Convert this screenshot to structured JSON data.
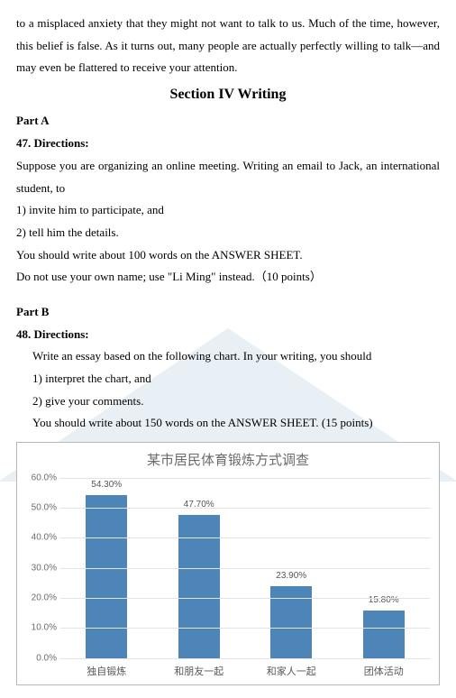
{
  "intro": "to a misplaced anxiety that they might not want to talk to us. Much of the time, however, this belief is false. As it turns out, many people are actually perfectly willing to talk—and may even be flattered to receive your attention.",
  "section_title": "Section IV Writing",
  "partA": {
    "label": "Part A",
    "num_dir": "47.  Directions:",
    "p1": "Suppose you are organizing an online meeting. Writing an email to Jack, an international student, to",
    "p2": "1)  invite him to participate, and",
    "p3": "2)  tell him the details.",
    "p4": "You should write about 100 words on the ANSWER SHEET.",
    "p5": "Do not use your own name; use \"Li Ming\" instead.（10 points）"
  },
  "partB": {
    "label": "Part B",
    "num_dir": "48. Directions:",
    "p1": "Write an essay based on the following chart. In your writing, you should",
    "p2": "1) interpret the chart, and",
    "p3": "2) give your comments.",
    "p4": "You should write about 150 words on the ANSWER SHEET. (15 points)"
  },
  "chart": {
    "title": "某市居民体育锻炼方式调查",
    "y_max": 60.0,
    "y_step": 10.0,
    "y_ticks": [
      "60.0%",
      "50.0%",
      "40.0%",
      "30.0%",
      "20.0%",
      "10.0%",
      "0.0%"
    ],
    "bar_color": "#4e85b8",
    "grid_color": "#e3e3e3",
    "categories": [
      {
        "label": "独自锻炼",
        "value": 54.3,
        "display": "54.30%"
      },
      {
        "label": "和朋友一起",
        "value": 47.7,
        "display": "47.70%"
      },
      {
        "label": "和家人一起",
        "value": 23.9,
        "display": "23.90%"
      },
      {
        "label": "团体活动",
        "value": 15.8,
        "display": "15.80%"
      }
    ]
  }
}
